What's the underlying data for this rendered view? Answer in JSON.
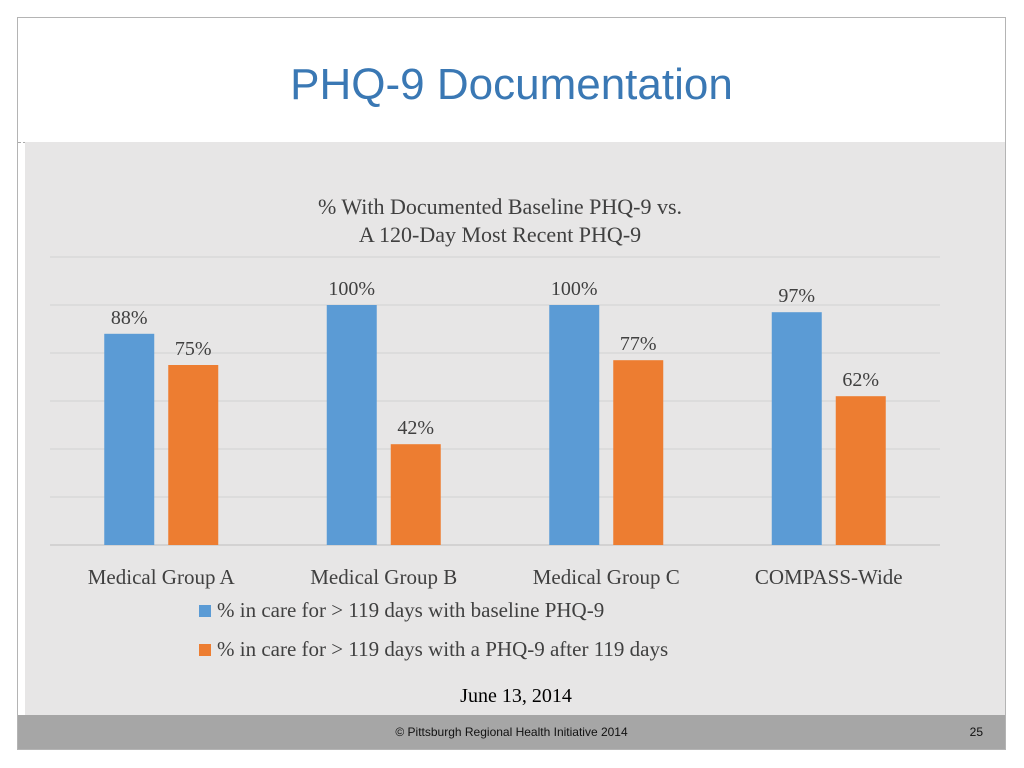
{
  "slide": {
    "title": "PHQ-9 Documentation",
    "date": "June 13, 2014",
    "footer": "© Pittsburgh Regional Health Initiative  2014",
    "page_number": "25"
  },
  "chart_data": {
    "type": "bar",
    "title_lines": [
      "% With Documented Baseline PHQ-9 vs.",
      "A 120-Day Most Recent PHQ-9"
    ],
    "categories": [
      "Medical Group A",
      "Medical Group B",
      "Medical Group C",
      "COMPASS-Wide"
    ],
    "series": [
      {
        "name": "% in care for > 119 days with baseline PHQ-9",
        "values": [
          88,
          100,
          100,
          97
        ],
        "labels": [
          "88%",
          "100%",
          "100%",
          "97%"
        ],
        "color": "#5b9bd5"
      },
      {
        "name": "% in care for > 119 days with a PHQ-9 after 119 days",
        "values": [
          75,
          42,
          77,
          62
        ],
        "labels": [
          "75%",
          "42%",
          "77%",
          "62%"
        ],
        "color": "#ed7d31"
      }
    ],
    "ylim": [
      0,
      120
    ],
    "grid": true,
    "legend_position": "bottom"
  }
}
